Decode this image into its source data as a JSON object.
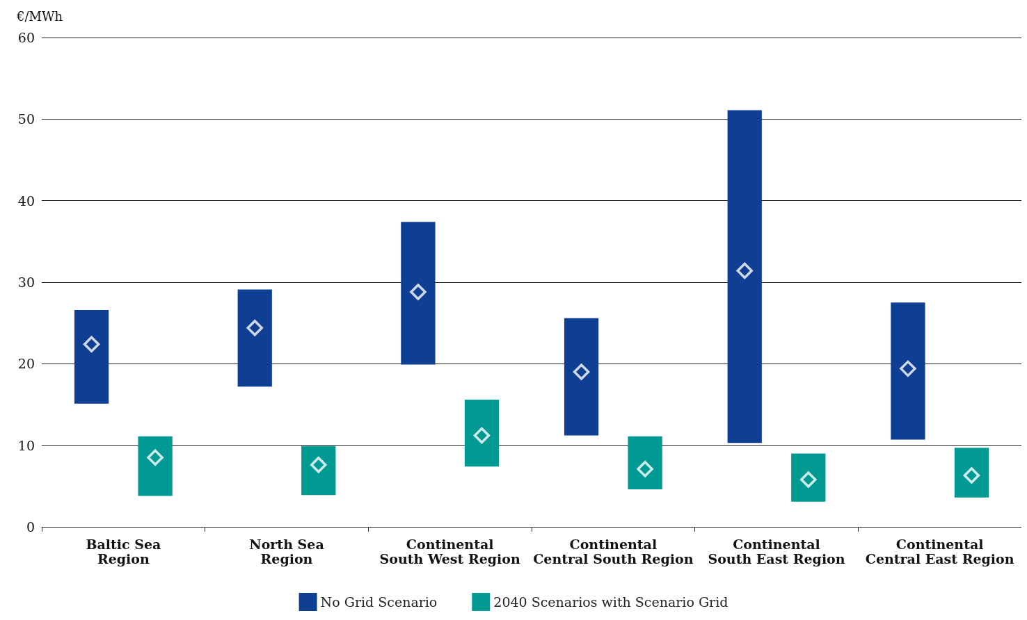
{
  "chart_data": {
    "type": "bar",
    "ylabel": "€/MWh",
    "categories": [
      "Baltic Sea\nRegion",
      "North Sea\nRegion",
      "Continental\nSouth West Region",
      "Continental\nCentral South Region",
      "Continental\nSouth East Region",
      "Continental\nCentral East Region"
    ],
    "series": [
      {
        "name": "No Grid Scenario",
        "color": "#0f3f93",
        "base": [
          15.1,
          17.2,
          19.9,
          11.2,
          10.3,
          10.7
        ],
        "values": [
          11.5,
          11.9,
          17.5,
          14.4,
          40.8,
          16.8
        ]
      },
      {
        "name": "2040 Scenarios with Scenario Grid",
        "color": "#009a93",
        "base": [
          3.8,
          3.9,
          7.4,
          4.6,
          3.1,
          3.6
        ],
        "values": [
          7.3,
          6.0,
          8.2,
          6.5,
          5.9,
          6.1
        ]
      },
      {
        "type": "scatter",
        "marker": "diamond",
        "color": "#ffffff",
        "x": [
          "Baltic Sea\nRegion",
          "North Sea\nRegion",
          "Continental\nSouth West Region",
          "Continental\nCentral South Region",
          "Continental\nSouth East Region",
          "Continental\nCentral East Region"
        ],
        "values": [
          22.4,
          24.4,
          28.8,
          19.0,
          31.4,
          19.4
        ]
      },
      {
        "type": "scatter",
        "marker": "diamond",
        "color": "#ffffff",
        "x": [
          "Baltic Sea\nRegion",
          "North Sea\nRegion",
          "Continental\nSouth West Region",
          "Continental\nCentral South Region",
          "Continental\nSouth East Region",
          "Continental\nCentral East Region"
        ],
        "values": [
          8.5,
          7.6,
          11.2,
          7.1,
          5.8,
          6.3
        ]
      }
    ],
    "ylim": [
      0,
      60
    ],
    "yticks": [
      0,
      10,
      20,
      30,
      40,
      50,
      60
    ],
    "grid": "y",
    "legend": "bottom"
  }
}
